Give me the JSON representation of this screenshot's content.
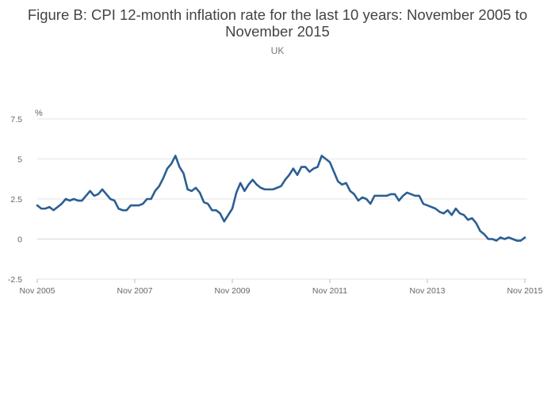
{
  "chart_data": {
    "type": "line",
    "title": "Figure B: CPI 12-month inflation rate for the last 10 years: November 2005 to November 2015",
    "subtitle": "UK",
    "ylabel": "%",
    "xlabel": "",
    "ylim": [
      -2.5,
      7.5
    ],
    "yticks": [
      -2.5,
      0,
      2.5,
      5,
      7.5
    ],
    "ytick_labels": [
      "-2.5",
      "0",
      "2.5",
      "5",
      "7.5"
    ],
    "xlim": [
      0,
      120
    ],
    "xticks": [
      0,
      24,
      48,
      72,
      96,
      120
    ],
    "xtick_labels": [
      "Nov 2005",
      "Nov 2007",
      "Nov 2009",
      "Nov 2011",
      "Nov 2013",
      "Nov 2015"
    ],
    "grid": true,
    "colors": {
      "line": "#2b5f93",
      "grid": "#e6e6e6",
      "zeroline": "#dddddd"
    },
    "series": [
      {
        "x_start": "Nov 2005",
        "x_step": "month",
        "values": [
          2.1,
          1.9,
          1.9,
          2.0,
          1.8,
          2.0,
          2.2,
          2.5,
          2.4,
          2.5,
          2.4,
          2.4,
          2.7,
          3.0,
          2.7,
          2.8,
          3.1,
          2.8,
          2.5,
          2.4,
          1.9,
          1.8,
          1.8,
          2.1,
          2.1,
          2.1,
          2.2,
          2.5,
          2.5,
          3.0,
          3.3,
          3.8,
          4.4,
          4.7,
          5.2,
          4.5,
          4.1,
          3.1,
          3.0,
          3.2,
          2.9,
          2.3,
          2.2,
          1.8,
          1.8,
          1.6,
          1.1,
          1.5,
          1.9,
          2.9,
          3.5,
          3.0,
          3.4,
          3.7,
          3.4,
          3.2,
          3.1,
          3.1,
          3.1,
          3.2,
          3.3,
          3.7,
          4.0,
          4.4,
          4.0,
          4.5,
          4.5,
          4.2,
          4.4,
          4.5,
          5.2,
          5.0,
          4.8,
          4.2,
          3.6,
          3.4,
          3.5,
          3.0,
          2.8,
          2.4,
          2.6,
          2.5,
          2.2,
          2.7,
          2.7,
          2.7,
          2.7,
          2.8,
          2.8,
          2.4,
          2.7,
          2.9,
          2.8,
          2.7,
          2.7,
          2.2,
          2.1,
          2.0,
          1.9,
          1.7,
          1.6,
          1.8,
          1.5,
          1.9,
          1.6,
          1.5,
          1.2,
          1.3,
          1.0,
          0.5,
          0.3,
          0.0,
          0.0,
          -0.1,
          0.1,
          0.0,
          0.1,
          0.0,
          -0.1,
          -0.1,
          0.1
        ]
      }
    ]
  }
}
